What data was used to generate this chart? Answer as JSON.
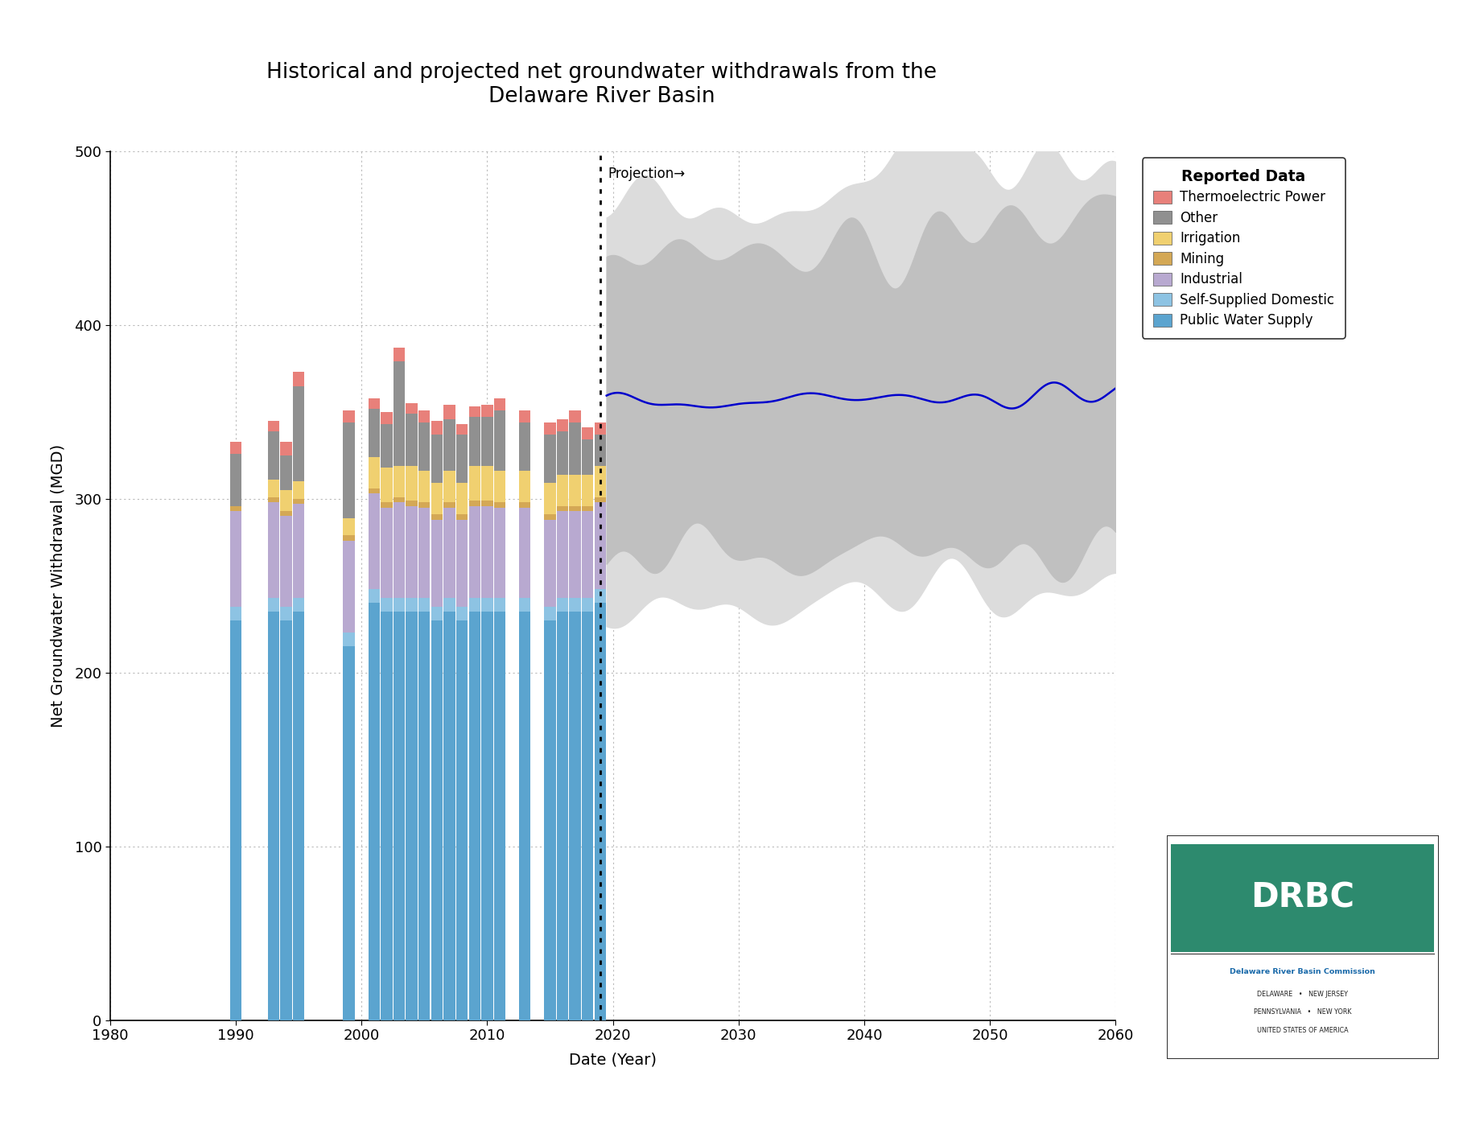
{
  "title": "Historical and projected net groundwater withdrawals from the\nDelaware River Basin",
  "xlabel": "Date (Year)",
  "ylabel": "Net Groundwater Withdrawal (MGD)",
  "xlim": [
    1980,
    2060
  ],
  "ylim": [
    0,
    500
  ],
  "yticks": [
    0,
    100,
    200,
    300,
    400,
    500
  ],
  "xticks": [
    1980,
    1990,
    2000,
    2010,
    2020,
    2030,
    2040,
    2050,
    2060
  ],
  "projection_year": 2019,
  "background_color": "#ffffff",
  "plot_bg_color": "#ffffff",
  "grid_color": "#bbbbbb",
  "hist_years": [
    1990,
    1991,
    1992,
    1993,
    1994,
    1995,
    1996,
    1997,
    1998,
    1999,
    2000,
    2001,
    2002,
    2003,
    2004,
    2005,
    2006,
    2007,
    2008,
    2009,
    2010,
    2011,
    2012,
    2013,
    2014,
    2015,
    2016,
    2017,
    2018,
    2019
  ],
  "pws": [
    230,
    0,
    0,
    235,
    230,
    235,
    0,
    0,
    0,
    215,
    0,
    240,
    235,
    235,
    235,
    235,
    230,
    235,
    230,
    235,
    235,
    235,
    0,
    235,
    0,
    230,
    235,
    235,
    235,
    240
  ],
  "ssd": [
    8,
    0,
    0,
    8,
    8,
    8,
    0,
    0,
    0,
    8,
    0,
    8,
    8,
    8,
    8,
    8,
    8,
    8,
    8,
    8,
    8,
    8,
    0,
    8,
    0,
    8,
    8,
    8,
    8,
    8
  ],
  "ind": [
    55,
    0,
    0,
    55,
    52,
    54,
    0,
    0,
    0,
    53,
    0,
    55,
    52,
    55,
    53,
    52,
    50,
    52,
    50,
    53,
    53,
    52,
    0,
    52,
    0,
    50,
    50,
    50,
    50,
    50
  ],
  "min": [
    3,
    0,
    0,
    3,
    3,
    3,
    0,
    0,
    0,
    3,
    0,
    3,
    3,
    3,
    3,
    3,
    3,
    3,
    3,
    3,
    3,
    3,
    0,
    3,
    0,
    3,
    3,
    3,
    3,
    3
  ],
  "irr": [
    0,
    0,
    0,
    10,
    12,
    10,
    0,
    0,
    0,
    10,
    0,
    18,
    20,
    18,
    20,
    18,
    18,
    18,
    18,
    20,
    20,
    18,
    0,
    18,
    0,
    18,
    18,
    18,
    18,
    18
  ],
  "oth": [
    30,
    0,
    0,
    28,
    20,
    55,
    0,
    0,
    0,
    55,
    0,
    28,
    25,
    60,
    30,
    28,
    28,
    30,
    28,
    28,
    28,
    35,
    0,
    28,
    0,
    28,
    25,
    30,
    20,
    18
  ],
  "therm": [
    7,
    0,
    0,
    6,
    8,
    8,
    0,
    0,
    0,
    7,
    0,
    6,
    7,
    8,
    6,
    7,
    8,
    8,
    6,
    6,
    7,
    7,
    0,
    7,
    0,
    7,
    7,
    7,
    7,
    7
  ],
  "colors": {
    "pws": "#5ba4cf",
    "ssd": "#8dc3e3",
    "ind": "#b8a9d0",
    "min": "#d4a855",
    "irr": "#f0d070",
    "oth": "#909090",
    "therm": "#e8807a"
  },
  "legend_title": "Reported Data",
  "legend_labels": [
    "Thermoelectric Power",
    "Other",
    "Irrigation",
    "Mining",
    "Industrial",
    "Self-Supplied Domestic",
    "Public Water Supply"
  ],
  "legend_colors": [
    "#e8807a",
    "#909090",
    "#f0d070",
    "#d4a855",
    "#b8a9d0",
    "#8dc3e3",
    "#5ba4cf"
  ]
}
